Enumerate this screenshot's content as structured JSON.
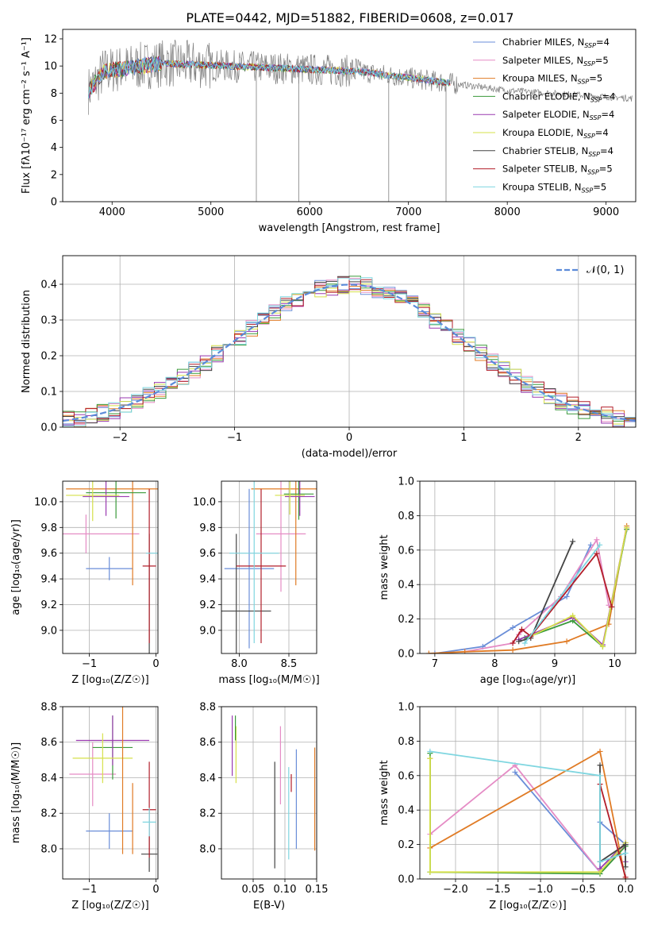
{
  "figure_title": "PLATE=0442, MJD=51882, FIBERID=0608, z=0.017",
  "colors": [
    "#6a8ed8",
    "#e58cc5",
    "#e07b25",
    "#3a9a3a",
    "#9a3ab0",
    "#d6e04a",
    "#444444",
    "#b21e2a",
    "#7fd6e0"
  ],
  "chart_data": [
    {
      "id": "spectrum",
      "type": "line",
      "title": "PLATE=0442, MJD=51882, FIBERID=0608, z=0.017",
      "xlabel": "wavelength [Angstrom, rest frame]",
      "ylabel": "Flux [fλ10⁻¹⁷ erg cm⁻² s⁻¹ A⁻¹]",
      "xlim": [
        3500,
        9300
      ],
      "ylim": [
        0,
        12.7
      ],
      "xticks": [
        4000,
        5000,
        6000,
        7000,
        8000,
        9000
      ],
      "yticks": [
        0,
        2,
        4,
        6,
        8,
        10,
        12
      ],
      "grid": false,
      "legend_position": "upper-right",
      "data_color": "#808080",
      "data_range": [
        3760,
        9270
      ],
      "model_range": [
        3760,
        7430
      ],
      "legend": [
        {
          "label": "Chabrier MILES, N",
          "sub": "SSP",
          "tail": "=4"
        },
        {
          "label": "Salpeter MILES, N",
          "sub": "SSP",
          "tail": "=5"
        },
        {
          "label": "Kroupa MILES, N",
          "sub": "SSP",
          "tail": "=5"
        },
        {
          "label": "Chabrier ELODIE, N",
          "sub": "SSP",
          "tail": "=4"
        },
        {
          "label": "Salpeter ELODIE, N",
          "sub": "SSP",
          "tail": "=4"
        },
        {
          "label": "Kroupa ELODIE, N",
          "sub": "SSP",
          "tail": "=4"
        },
        {
          "label": "Chabrier STELIB, N",
          "sub": "SSP",
          "tail": "=4"
        },
        {
          "label": "Salpeter STELIB, N",
          "sub": "SSP",
          "tail": "=5"
        },
        {
          "label": "Kroupa STELIB, N",
          "sub": "SSP",
          "tail": "=5"
        }
      ]
    },
    {
      "id": "residuals",
      "type": "histogram",
      "xlabel": "(data-model)/error",
      "ylabel": "Normed distribution",
      "xlim": [
        -2.5,
        2.5
      ],
      "ylim": [
        0,
        0.48
      ],
      "xticks": [
        -2,
        -1,
        0,
        1,
        2
      ],
      "xticklabels": [
        "−2",
        "−1",
        "0",
        "1",
        "2"
      ],
      "yticks": [
        0.0,
        0.1,
        0.2,
        0.3,
        0.4
      ],
      "grid": true,
      "legend_position": "upper-right",
      "legend_label": "𝒩(0, 1)",
      "gaussian_color": "#5b8bd9"
    },
    {
      "id": "age-vs-Z",
      "type": "errorbar",
      "xlabel": "Z [log₁₀(Z/Z☉)]",
      "ylabel": "age  [log₁₀(age/yr)]",
      "xlim": [
        -1.4,
        0.03
      ],
      "ylim": [
        8.82,
        10.16
      ],
      "xticks": [
        -1,
        0
      ],
      "xticklabels": [
        "−1",
        "0"
      ],
      "yticks": [
        9.0,
        9.2,
        9.4,
        9.6,
        9.8,
        10.0
      ],
      "grid": true,
      "points": [
        {
          "x": -0.7,
          "xerr": 0.35,
          "y": 9.48,
          "yerr": 0.09,
          "color": 0
        },
        {
          "x": -1.05,
          "xerr": 0.8,
          "y": 9.75,
          "yerr": 0.15,
          "color": 1
        },
        {
          "x": -0.35,
          "xerr": 1.0,
          "y": 10.1,
          "yerr": 0.75,
          "color": 2
        },
        {
          "x": -0.6,
          "xerr": 0.45,
          "y": 10.07,
          "yerr": 0.2,
          "color": 3
        },
        {
          "x": -0.75,
          "xerr": 0.35,
          "y": 10.04,
          "yerr": 0.15,
          "color": 4
        },
        {
          "x": -0.95,
          "xerr": 0.4,
          "y": 10.05,
          "yerr": 0.2,
          "color": 5
        },
        {
          "x": -0.1,
          "xerr": 0.0,
          "y": 9.15,
          "yerr": 0.6,
          "color": 6
        },
        {
          "x": -0.1,
          "xerr": 0.1,
          "y": 9.5,
          "yerr": 0.6,
          "color": 7
        },
        {
          "x": -0.05,
          "xerr": 0.1,
          "y": 9.6,
          "yerr": 0.0,
          "color": 8
        }
      ]
    },
    {
      "id": "age-vs-mass",
      "type": "errorbar",
      "xlabel": "mass [log₁₀(M/M☉)]",
      "ylabel": "",
      "xlim": [
        7.82,
        8.78
      ],
      "ylim": [
        8.82,
        10.16
      ],
      "xticks": [
        8.0,
        8.5
      ],
      "xticklabels": [
        "8.0",
        "8.5"
      ],
      "yticks": [
        9.0,
        9.2,
        9.4,
        9.6,
        9.8,
        10.0
      ],
      "grid": true,
      "points": [
        {
          "x": 8.1,
          "xerr": 0.25,
          "y": 9.48,
          "yerr": 0.62,
          "color": 0
        },
        {
          "x": 8.42,
          "xerr": 0.25,
          "y": 9.75,
          "yerr": 0.45,
          "color": 1
        },
        {
          "x": 8.57,
          "xerr": 0.45,
          "y": 10.1,
          "yerr": 0.75,
          "color": 2
        },
        {
          "x": 8.6,
          "xerr": 0.15,
          "y": 10.06,
          "yerr": 0.2,
          "color": 3
        },
        {
          "x": 8.61,
          "xerr": 0.15,
          "y": 10.04,
          "yerr": 0.15,
          "color": 4
        },
        {
          "x": 8.51,
          "xerr": 0.15,
          "y": 10.05,
          "yerr": 0.15,
          "color": 5
        },
        {
          "x": 7.97,
          "xerr": 0.35,
          "y": 9.15,
          "yerr": 0.6,
          "color": 6
        },
        {
          "x": 8.22,
          "xerr": 0.25,
          "y": 9.5,
          "yerr": 0.6,
          "color": 7
        },
        {
          "x": 8.15,
          "xerr": 0.25,
          "y": 9.6,
          "yerr": 0.7,
          "color": 8
        }
      ]
    },
    {
      "id": "weight-vs-age",
      "type": "line",
      "xlabel": "age  [log₁₀(age/yr)]",
      "ylabel": "mass weight",
      "xlim": [
        6.75,
        10.35
      ],
      "ylim": [
        0,
        1.0
      ],
      "xticks": [
        7,
        8,
        9,
        10
      ],
      "xticklabels": [
        "7",
        "8",
        "9",
        "10"
      ],
      "yticks": [
        0.0,
        0.2,
        0.4,
        0.6,
        0.8,
        1.0
      ],
      "grid": true,
      "series": [
        {
          "color": 0,
          "x": [
            7.0,
            7.8,
            8.3,
            9.2,
            9.6
          ],
          "y": [
            0.0,
            0.04,
            0.15,
            0.33,
            0.63
          ]
        },
        {
          "color": 1,
          "x": [
            7.5,
            8.3,
            8.4,
            9.1,
            9.7,
            9.9
          ],
          "y": [
            0.01,
            0.06,
            0.11,
            0.33,
            0.66,
            0.28
          ]
        },
        {
          "color": 2,
          "x": [
            6.9,
            7.5,
            8.3,
            9.2,
            9.9,
            10.2
          ],
          "y": [
            0.0,
            0.01,
            0.02,
            0.07,
            0.17,
            0.74
          ]
        },
        {
          "color": 3,
          "x": [
            8.5,
            9.3,
            9.8,
            10.2
          ],
          "y": [
            0.09,
            0.19,
            0.04,
            0.72
          ]
        },
        {
          "color": 4,
          "x": [
            8.4,
            9.3,
            9.8,
            10.2
          ],
          "y": [
            0.08,
            0.21,
            0.05,
            0.73
          ]
        },
        {
          "color": 5,
          "x": [
            8.6,
            9.3,
            9.8,
            10.2
          ],
          "y": [
            0.1,
            0.22,
            0.04,
            0.73
          ]
        },
        {
          "color": 6,
          "x": [
            8.4,
            8.6,
            9.3
          ],
          "y": [
            0.07,
            0.09,
            0.65
          ]
        },
        {
          "color": 7,
          "x": [
            8.3,
            8.45,
            8.6,
            9.7,
            9.95
          ],
          "y": [
            0.06,
            0.14,
            0.1,
            0.58,
            0.27
          ]
        },
        {
          "color": 8,
          "x": [
            8.5,
            9.75
          ],
          "y": [
            0.06,
            0.63
          ]
        }
      ]
    },
    {
      "id": "mass-vs-Z",
      "type": "errorbar",
      "xlabel": "Z [log₁₀(Z/Z☉)]",
      "ylabel": "mass [log₁₀(M/M☉)]",
      "xlim": [
        -1.4,
        0.03
      ],
      "ylim": [
        7.83,
        8.8
      ],
      "xticks": [
        -1,
        0
      ],
      "xticklabels": [
        "−1",
        "0"
      ],
      "yticks": [
        8.0,
        8.2,
        8.4,
        8.6,
        8.8
      ],
      "grid": true,
      "points": [
        {
          "x": -0.7,
          "xerr": 0.35,
          "y": 8.1,
          "yerr": 0.1,
          "color": 0
        },
        {
          "x": -0.95,
          "xerr": 0.35,
          "y": 8.42,
          "yerr": 0.18,
          "color": 1
        },
        {
          "x": -0.35,
          "xerr": 0.0,
          "y": 8.17,
          "yerr": 0.2,
          "color": 2
        },
        {
          "x": -0.65,
          "xerr": 0.3,
          "y": 8.57,
          "yerr": 0.18,
          "color": 3
        },
        {
          "x": -0.65,
          "xerr": 0.55,
          "y": 8.61,
          "yerr": 0.14,
          "color": 4
        },
        {
          "x": -0.8,
          "xerr": 0.45,
          "y": 8.51,
          "yerr": 0.14,
          "color": 5
        },
        {
          "x": -0.1,
          "xerr": 0.12,
          "y": 7.97,
          "yerr": 0.1,
          "color": 6
        },
        {
          "x": -0.1,
          "xerr": 0.1,
          "y": 8.22,
          "yerr": 0.27,
          "color": 7
        },
        {
          "x": -0.1,
          "xerr": 0.1,
          "y": 8.15,
          "yerr": 0.08,
          "color": 8
        },
        {
          "x": -0.5,
          "xerr": 0.0,
          "y": 8.57,
          "yerr": 0.6,
          "color": 2
        }
      ]
    },
    {
      "id": "mass-vs-EBV",
      "type": "errorbar",
      "xlabel": "E(B-V)",
      "ylabel": "",
      "xlim": [
        0.0,
        0.15
      ],
      "ylim": [
        7.83,
        8.8
      ],
      "xticks": [
        0.05,
        0.1,
        0.15
      ],
      "xticklabels": [
        "0.05",
        "0.10",
        "0.15"
      ],
      "yticks": [
        8.0,
        8.2,
        8.4,
        8.6,
        8.8
      ],
      "grid": true,
      "points": [
        {
          "x": 0.118,
          "xerr": 0.0,
          "y": 8.28,
          "yerr": 0.28,
          "color": 0
        },
        {
          "x": 0.093,
          "xerr": 0.0,
          "y": 8.47,
          "yerr": 0.22,
          "color": 1
        },
        {
          "x": 0.147,
          "xerr": 0.0,
          "y": 8.28,
          "yerr": 0.29,
          "color": 2
        },
        {
          "x": 0.017,
          "xerr": 0.0,
          "y": 8.58,
          "yerr": 0.17,
          "color": 4
        },
        {
          "x": 0.023,
          "xerr": 0.0,
          "y": 8.53,
          "yerr": 0.16,
          "color": 5
        },
        {
          "x": 0.084,
          "xerr": 0.0,
          "y": 8.19,
          "yerr": 0.3,
          "color": 6
        },
        {
          "x": 0.11,
          "xerr": 0.0,
          "y": 8.37,
          "yerr": 0.05,
          "color": 7
        },
        {
          "x": 0.106,
          "xerr": 0.0,
          "y": 8.2,
          "yerr": 0.26,
          "color": 8
        },
        {
          "x": 0.022,
          "xerr": 0.0,
          "y": 8.68,
          "yerr": 0.07,
          "color": 3
        }
      ]
    },
    {
      "id": "weight-vs-Z",
      "type": "line",
      "xlabel": "Z [log₁₀(Z/Z☉)]",
      "ylabel": "mass weight",
      "xlim": [
        -2.42,
        0.12
      ],
      "ylim": [
        0,
        1.0
      ],
      "xticks": [
        -2.0,
        -1.5,
        -1.0,
        -0.5,
        0.0
      ],
      "xticklabels": [
        "−2.0",
        "−1.5",
        "−1.0",
        "−0.5",
        "0.0"
      ],
      "yticks": [
        0.0,
        0.2,
        0.4,
        0.6,
        0.8,
        1.0
      ],
      "grid": true,
      "series": [
        {
          "color": 0,
          "x": [
            -1.3,
            -0.3,
            -0.3,
            0.0
          ],
          "y": [
            0.62,
            0.04,
            0.33,
            0.2
          ]
        },
        {
          "color": 1,
          "x": [
            -2.3,
            -1.3,
            -0.3,
            0.0
          ],
          "y": [
            0.26,
            0.66,
            0.04,
            0.2
          ]
        },
        {
          "color": 2,
          "x": [
            -2.3,
            -2.3,
            -0.3,
            0.0
          ],
          "y": [
            0.7,
            0.18,
            0.74,
            0.0
          ]
        },
        {
          "color": 3,
          "x": [
            -2.3,
            -2.3,
            -0.3,
            0.0
          ],
          "y": [
            0.73,
            0.04,
            0.03,
            0.19
          ]
        },
        {
          "color": 4,
          "x": [
            -0.3,
            0.0,
            0.0
          ],
          "y": [
            0.06,
            0.21,
            0.1
          ]
        },
        {
          "color": 5,
          "x": [
            -2.3,
            -2.3,
            -0.3,
            0.0
          ],
          "y": [
            0.7,
            0.04,
            0.04,
            0.21
          ]
        },
        {
          "color": 6,
          "x": [
            -0.3,
            -0.3,
            0.0,
            0.0
          ],
          "y": [
            0.66,
            0.1,
            0.2,
            0.07
          ]
        },
        {
          "color": 7,
          "x": [
            -0.3,
            0.0
          ],
          "y": [
            0.55,
            0.01
          ]
        },
        {
          "color": 8,
          "x": [
            -2.3,
            -0.3,
            -0.3,
            0.0
          ],
          "y": [
            0.74,
            0.6,
            0.1,
            0.15
          ]
        }
      ]
    }
  ]
}
